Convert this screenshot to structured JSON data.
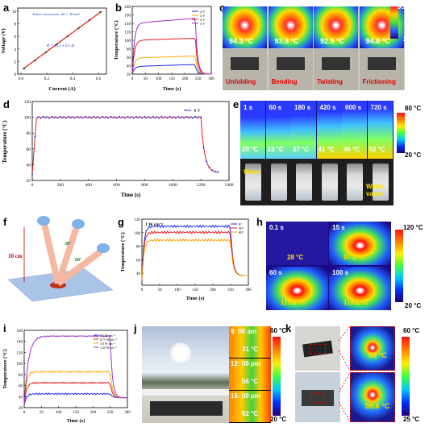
{
  "panels": {
    "a": {
      "label": "a",
      "annotation": "Active circuit area: 60 × 30 mm²",
      "equation": "R = 14.1 ± 0.1 Ω",
      "xlabel": "Current (A)",
      "ylabel": "Voltage (V)",
      "xticks": [
        "0.0",
        "0.2",
        "0.4",
        "0.6"
      ],
      "yticks": [
        "0",
        "2",
        "4",
        "6",
        "8",
        "10"
      ]
    },
    "b": {
      "label": "b",
      "xlabel": "Time (s)",
      "ylabel": "Temperature (°C)",
      "legend": [
        "2 V",
        "3 V",
        "4 V",
        "5 V"
      ],
      "xticks": [
        "0",
        "50",
        "100",
        "150",
        "200",
        "250",
        "300"
      ],
      "yticks": [
        "20",
        "40",
        "60",
        "80",
        "100",
        "120",
        "140",
        "160",
        "180"
      ]
    },
    "c": {
      "label": "c",
      "temps": [
        "94.3 °C",
        "93.8 °C",
        "92.5 °C",
        "94.8 °C"
      ],
      "captions": [
        "Unfolding",
        "Bending",
        "Twisting",
        "Frictioning"
      ],
      "scale_max": "95 °C",
      "scale_min": "20 °C"
    },
    "d": {
      "label": "d",
      "xlabel": "Time (s)",
      "ylabel": "Temperature (°C)",
      "legend": "4 V",
      "xticks": [
        "0",
        "200",
        "400",
        "600",
        "800",
        "1000",
        "1200",
        "1400"
      ],
      "yticks": [
        "20",
        "40",
        "60",
        "80",
        "100",
        "120"
      ]
    },
    "e": {
      "label": "e",
      "times": [
        "1 s",
        "60 s",
        "180 s",
        "420 s",
        "600 s",
        "720 s"
      ],
      "temps": [
        "20 °C",
        "23 °C",
        "27 °C",
        "41 °C",
        "46 °C",
        "52 °C"
      ],
      "water_left": "Water",
      "water_right": "Water vapor",
      "scale_max": "80 °C",
      "scale_min": "20 °C"
    },
    "f": {
      "label": "f",
      "distance": "10 cm",
      "angle1": "30°",
      "angle2": "60°"
    },
    "g": {
      "label": "g",
      "title": "1 W cm⁻²",
      "xlabel": "Time (s)",
      "ylabel": "Temperature (°C)",
      "legend": [
        "0°",
        "30°",
        "60°"
      ],
      "xticks": [
        "0",
        "50",
        "100",
        "150",
        "200",
        "250",
        "300"
      ],
      "yticks": [
        "20",
        "40",
        "60",
        "80",
        "100",
        "120"
      ]
    },
    "h": {
      "label": "h",
      "times": [
        "0.1 s",
        "15 s",
        "60 s",
        "100 s"
      ],
      "temps": [
        "28 °C",
        "97.2 °C",
        "115.8 °C",
        "119.2 °C"
      ],
      "scale_max": "120 °C",
      "scale_min": "20 °C"
    },
    "i": {
      "label": "i",
      "xlabel": "Time (s)",
      "ylabel": "Temperature (°C)",
      "legend": [
        "0.5 W cm⁻²",
        "0.75 W cm⁻²",
        "1.0 W cm⁻²",
        "1.25 W cm⁻²"
      ],
      "xticks": [
        "0",
        "50",
        "100",
        "150",
        "200",
        "250",
        "300"
      ],
      "yticks": [
        "20",
        "40",
        "60",
        "80",
        "100",
        "120",
        "140",
        "160"
      ]
    },
    "j": {
      "label": "j",
      "times": [
        "9: 00 am",
        "12: 00 pm",
        "15: 00 pm"
      ],
      "temps": [
        "31 °C",
        "56 °C",
        "52 °C"
      ],
      "scale_max": "60 °C",
      "scale_min": "20 °C"
    },
    "k": {
      "label": "k",
      "temps": [
        "58 °C",
        "59.6 °C"
      ],
      "scale_max": "60 °C",
      "scale_min": "25 °C"
    }
  },
  "colors": {
    "red": "#e41a1c",
    "blue": "#1f2ee6",
    "orange": "#ffa500",
    "purple": "#9b30c8"
  }
}
